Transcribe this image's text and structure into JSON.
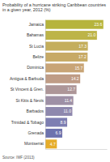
{
  "chart_data": {
    "type": "bar",
    "orientation": "horizontal",
    "title": "Probability of a hurricane striking Caribbean countries in a given year, 2012 (%)",
    "source": "Source: IMF (2013)",
    "categories": [
      "Jamaica",
      "Bahamas",
      "St Lucia",
      "Belize",
      "Dominica",
      "Antigua & Barbuda",
      "St Vincent & Gren.",
      "St Kitts & Nevis",
      "Barbados",
      "Trinidad & Tobago",
      "Grenada",
      "Montserrat"
    ],
    "values": [
      23.6,
      21.0,
      17.3,
      17.2,
      15.7,
      14.2,
      12.7,
      11.4,
      11.0,
      8.9,
      6.9,
      4.7
    ],
    "value_labels": [
      "23.6",
      "21.0",
      "17.3",
      "17.2",
      "15.7",
      "14.2",
      "12.7",
      "11.4",
      "11.0",
      "8.9",
      "6.9",
      "4.7"
    ],
    "colors": [
      "#b6b43c",
      "#bdb448",
      "#c4ae5c",
      "#c7aa66",
      "#c8a476",
      "#bf9c86",
      "#ad9698",
      "#9e90a6",
      "#8e88ae",
      "#7d7eb2",
      "#6d73ae",
      "#e6ad2a"
    ],
    "xlim": [
      0,
      25
    ],
    "xticks": [],
    "data_labels": true,
    "tick_labels": "y",
    "grid": false
  }
}
